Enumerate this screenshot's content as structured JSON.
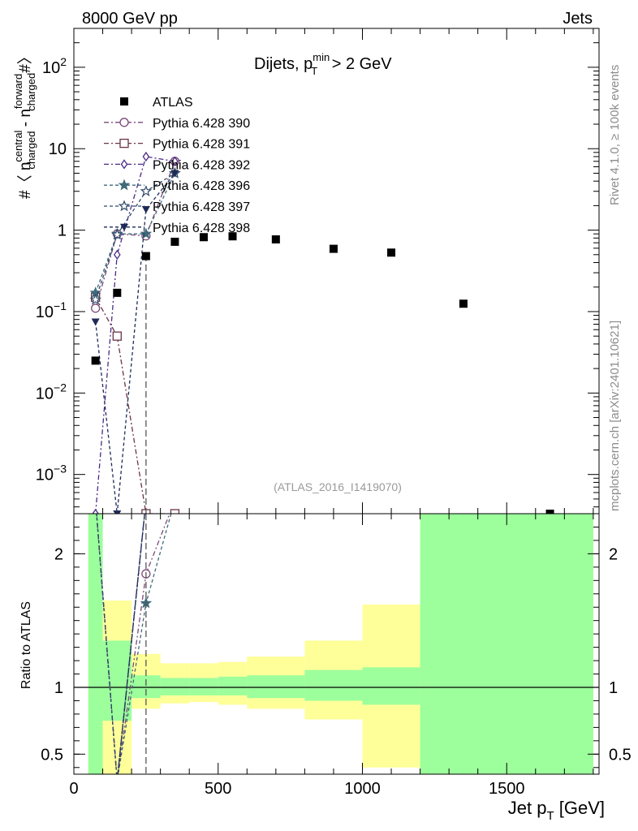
{
  "header": {
    "left": "8000 GeV pp",
    "right": "Jets"
  },
  "side_text": {
    "rivet": "Rivet 4.1.0, ≥ 100k events",
    "mcplots": "mcplots.cern.ch [arXiv:2401.10621]"
  },
  "colors": {
    "data": "#000000",
    "s390": "#7b4a78",
    "s391": "#6b3348",
    "s392": "#4b2a86",
    "s396": "#3e6a7a",
    "s397": "#2f4a6a",
    "s398": "#1e2a55",
    "band_stat": "#9cff9c",
    "band_total": "#ffff99"
  },
  "chart_data": [
    {
      "type": "scatter",
      "title_text": "Dijets, ",
      "title_sym": "p",
      "title_sub": "T",
      "title_sup": "min",
      "title_tail": " > 2 GeV",
      "watermark": "(ATLAS_2016_I1419070)",
      "ylabel_parts": [
        "#〈 n",
        "central",
        "charged",
        " - n",
        "forward",
        "charged",
        "#〉"
      ],
      "yscale": "log",
      "ylim": [
        0.00033,
        300
      ],
      "xlim": [
        0,
        1820
      ],
      "yticks": [
        {
          "v": 0.001,
          "m": "10",
          "e": "−3"
        },
        {
          "v": 0.01,
          "m": "10",
          "e": "−2"
        },
        {
          "v": 0.1,
          "m": "10",
          "e": "−1"
        },
        {
          "v": 1,
          "m": "1",
          "e": ""
        },
        {
          "v": 10,
          "m": "10",
          "e": ""
        },
        {
          "v": 100,
          "m": "10",
          "e": "2"
        }
      ],
      "series": [
        {
          "name": "ATLAS",
          "key": "data",
          "marker": "square",
          "x": [
            75,
            150,
            250,
            350,
            450,
            550,
            700,
            900,
            1100,
            1350,
            1650
          ],
          "y": [
            0.025,
            0.17,
            0.48,
            0.72,
            0.82,
            0.84,
            0.77,
            0.59,
            0.53,
            0.125,
            0.00033
          ]
        },
        {
          "name": "Pythia 6.428 390",
          "key": "s390",
          "marker": "circle",
          "dash": "6,3,2,3",
          "x": [
            75,
            150,
            250,
            350
          ],
          "y": [
            0.11,
            0.9,
            0.85,
            7.0
          ]
        },
        {
          "name": "Pythia 6.428 391",
          "key": "s391",
          "marker": "square-open",
          "dash": "6,3,2,3",
          "x": [
            75,
            150,
            250,
            350
          ],
          "y": [
            0.15,
            0.05,
            0.00033,
            0.00033
          ]
        },
        {
          "name": "Pythia 6.428 392",
          "key": "s392",
          "marker": "diamond",
          "dash": "6,3,2,3",
          "x": [
            75,
            150,
            250,
            350
          ],
          "y": [
            0.00033,
            0.5,
            8.0,
            7.0
          ]
        },
        {
          "name": "Pythia 6.428 396",
          "key": "s396",
          "marker": "star",
          "dash": "4,3",
          "x": [
            75,
            150,
            250,
            350
          ],
          "y": [
            0.17,
            0.9,
            0.9,
            5.0
          ]
        },
        {
          "name": "Pythia 6.428 397",
          "key": "s397",
          "marker": "star-open",
          "dash": "4,3",
          "x": [
            75,
            150,
            250,
            350
          ],
          "y": [
            0.14,
            0.88,
            3.0,
            5.0
          ]
        },
        {
          "name": "Pythia 6.428 398",
          "key": "s398",
          "marker": "tri-down",
          "dash": "4,3",
          "x": [
            75,
            150,
            250,
            350
          ],
          "y": [
            0.075,
            0.00033,
            1.8,
            5.0
          ]
        }
      ]
    },
    {
      "type": "line",
      "ylabel": "Ratio to ATLAS",
      "xlabel_main": "Jet p",
      "xlabel_sub": "T",
      "xlabel_tail": " [GeV]",
      "ylim": [
        0.35,
        2.3
      ],
      "xlim": [
        0,
        1820
      ],
      "yticks": [
        0.5,
        1,
        2
      ],
      "ytick_labels": [
        "0.5",
        "1",
        "2"
      ],
      "xticks": [
        0,
        500,
        1000,
        1500
      ],
      "xtick_labels": [
        "0",
        "500",
        "1000",
        "1500"
      ],
      "bins": [
        {
          "lo": 50,
          "hi": 100,
          "stat": [
            0.3,
            2.4
          ],
          "tot": [
            0.3,
            2.4
          ]
        },
        {
          "lo": 100,
          "hi": 200,
          "stat": [
            0.75,
            1.35
          ],
          "tot": [
            0.3,
            1.65
          ]
        },
        {
          "lo": 200,
          "hi": 300,
          "stat": [
            0.92,
            1.09
          ],
          "tot": [
            0.84,
            1.25
          ]
        },
        {
          "lo": 300,
          "hi": 400,
          "stat": [
            0.94,
            1.07
          ],
          "tot": [
            0.88,
            1.18
          ]
        },
        {
          "lo": 400,
          "hi": 500,
          "stat": [
            0.94,
            1.07
          ],
          "tot": [
            0.89,
            1.18
          ]
        },
        {
          "lo": 500,
          "hi": 600,
          "stat": [
            0.94,
            1.08
          ],
          "tot": [
            0.87,
            1.19
          ]
        },
        {
          "lo": 600,
          "hi": 800,
          "stat": [
            0.92,
            1.09
          ],
          "tot": [
            0.84,
            1.23
          ]
        },
        {
          "lo": 800,
          "hi": 1000,
          "stat": [
            0.9,
            1.13
          ],
          "tot": [
            0.76,
            1.35
          ]
        },
        {
          "lo": 1000,
          "hi": 1200,
          "stat": [
            0.87,
            1.15
          ],
          "tot": [
            0.4,
            1.62
          ]
        },
        {
          "lo": 1200,
          "hi": 1800,
          "stat": [
            0.3,
            2.4
          ],
          "tot": [
            0.3,
            2.4
          ]
        }
      ],
      "series": [
        {
          "name": "Pythia 6.428 390",
          "key": "s390",
          "marker": "circle",
          "dash": "6,3,2,3",
          "x": [
            75,
            150,
            250,
            350
          ],
          "y": [
            0.3,
            0.3,
            1.85,
            2.4
          ]
        },
        {
          "name": "Pythia 6.428 391",
          "key": "s391",
          "marker": "square-open",
          "dash": "6,3,2,3",
          "x": [
            75,
            150,
            250
          ],
          "y": [
            2.4,
            0.3,
            2.4
          ]
        },
        {
          "name": "Pythia 6.428 392",
          "key": "s392",
          "marker": "diamond",
          "dash": "6,3,2,3",
          "x": [
            75,
            150,
            250
          ],
          "y": [
            2.4,
            0.3,
            2.4
          ]
        },
        {
          "name": "Pythia 6.428 396",
          "key": "s396",
          "marker": "star",
          "dash": "4,3",
          "x": [
            75,
            150,
            250,
            350
          ],
          "y": [
            2.4,
            0.3,
            1.63,
            2.4
          ]
        },
        {
          "name": "Pythia 6.428 397",
          "key": "s397",
          "marker": "star-open",
          "dash": "4,3",
          "x": [
            75,
            150,
            250
          ],
          "y": [
            2.4,
            0.3,
            2.4
          ]
        },
        {
          "name": "Pythia 6.428 398",
          "key": "s398",
          "marker": "tri-down",
          "dash": "4,3",
          "x": [
            75,
            150,
            250
          ],
          "y": [
            0.3,
            0.3,
            2.4
          ]
        }
      ]
    }
  ]
}
